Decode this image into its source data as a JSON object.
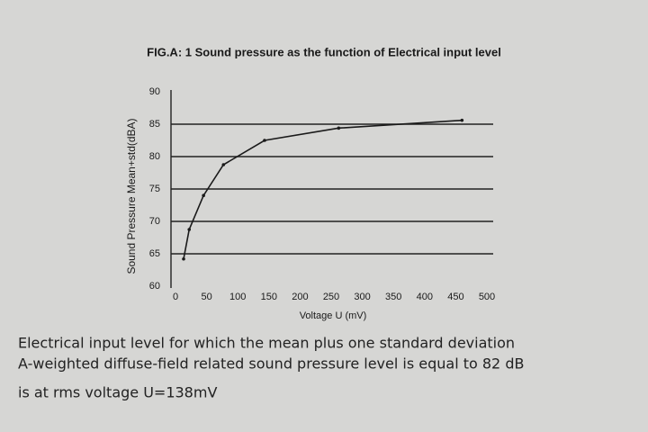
{
  "chart_data": {
    "type": "line",
    "title": "FIG.A:  1 Sound pressure as the function of Electrical input level",
    "x_label": "Voltage U (mV)",
    "y_label": "Sound Pressure Mean+std(dBA)",
    "x": [
      13,
      22,
      45,
      77,
      143,
      262,
      460
    ],
    "series": [
      {
        "color": "#1a1a1a",
        "values": [
          64.2,
          68.75,
          74,
          78.75,
          82.5,
          84.4,
          85.6
        ]
      }
    ],
    "xlim": [
      0,
      500
    ],
    "xticks": [
      0,
      50,
      100,
      150,
      200,
      250,
      300,
      350,
      400,
      450,
      500
    ],
    "ylim": [
      60,
      90
    ],
    "yticks": [
      60,
      65,
      70,
      75,
      80,
      85,
      90
    ],
    "grid": true
  },
  "caption": [
    "Electrical input level for which the mean plus one standard deviation",
    "A-weighted diffuse-field related sound pressure level is equal to 82 dB",
    "is at rms voltage U=138mV"
  ]
}
